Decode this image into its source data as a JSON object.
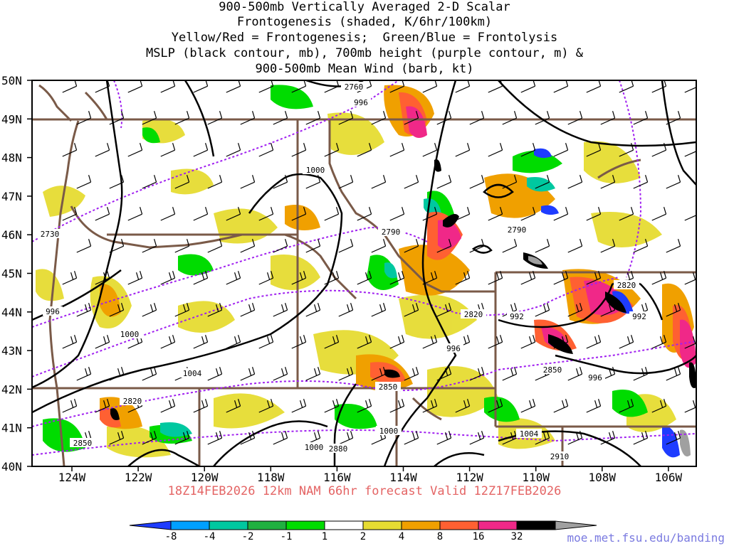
{
  "title_lines": [
    "900-500mb Vertically Averaged 2-D Scalar",
    "Frontogenesis (shaded, K/6hr/100km)",
    "Yellow/Red = Frontogenesis;  Green/Blue = Frontolysis",
    "MSLP (black contour, mb), 700mb height (purple contour, m) &",
    "900-500mb Mean Wind (barb, kt)"
  ],
  "lat_labels": [
    "50N",
    "49N",
    "48N",
    "47N",
    "46N",
    "45N",
    "44N",
    "43N",
    "42N",
    "41N",
    "40N"
  ],
  "lon_labels": [
    "124W",
    "122W",
    "120W",
    "118W",
    "116W",
    "114W",
    "112W",
    "110W",
    "108W",
    "106W"
  ],
  "footer": "18Z14FEB2026 12km NAM 66hr forecast Valid 12Z17FEB2026",
  "credit": "moe.met.fsu.edu/banding",
  "colorbar": {
    "labels": [
      "-8",
      "-4",
      "-2",
      "-1",
      "1",
      "2",
      "4",
      "8",
      "16",
      "32"
    ],
    "colors": [
      "#1e3cff",
      "#00a0ff",
      "#00c8a0",
      "#20b040",
      "#00dc00",
      "#ffffff",
      "#e6dc32",
      "#f0a000",
      "#ff6032",
      "#f02888",
      "#000000",
      "#a0a0a0"
    ]
  },
  "contour_labels": {
    "mslp": [
      "996",
      "1000",
      "996",
      "1000",
      "1004",
      "992",
      "996",
      "992",
      "996",
      "1000",
      "1004",
      "1000"
    ],
    "height": [
      "2760",
      "2730",
      "2790",
      "2790",
      "2820",
      "2820",
      "2850",
      "2850",
      "2820",
      "2850",
      "2880",
      "2910"
    ]
  },
  "colors": {
    "mslp": "#000000",
    "height": "#a020f0",
    "boundary": "#7a5a48",
    "footer": "#e46464",
    "credit": "#7a7ae0"
  }
}
